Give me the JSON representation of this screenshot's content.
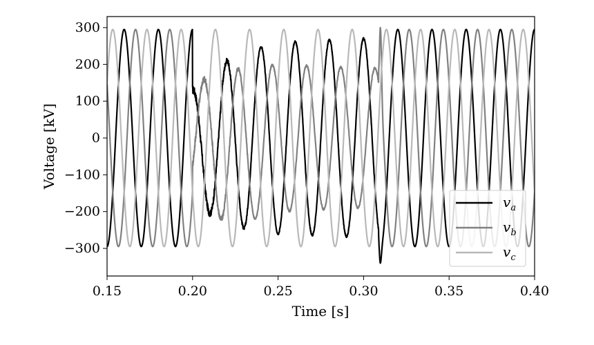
{
  "chart_data": {
    "type": "line",
    "title": "",
    "xlabel": "Time [s]",
    "ylabel": "Voltage [kV]",
    "xlim": [
      0.15,
      0.4
    ],
    "ylim": [
      -375,
      330
    ],
    "xticks": [
      "0.15",
      "0.20",
      "0.25",
      "0.30",
      "0.35",
      "0.40"
    ],
    "yticks": [
      "300",
      "200",
      "100",
      "0",
      "−100",
      "−200",
      "−300"
    ],
    "grid": false,
    "legend_position": "bottom-right",
    "frequency_hz": 50,
    "nominal_amplitude": 295,
    "fault_interval": [
      0.2,
      0.31
    ],
    "series": [
      {
        "name": "v",
        "subscript": "a",
        "color": "#000000",
        "phase_deg": 0,
        "fault_amplitude_envelope": [
          [
            0.2,
            150
          ],
          [
            0.215,
            210
          ],
          [
            0.23,
            240
          ],
          [
            0.25,
            260
          ],
          [
            0.3,
            270
          ],
          [
            0.31,
            270
          ]
        ],
        "fault_offset_envelope": [
          [
            0.2,
            -20
          ],
          [
            0.23,
            -5
          ],
          [
            0.25,
            0
          ],
          [
            0.31,
            0
          ]
        ],
        "transient_extreme": -340
      },
      {
        "name": "v",
        "subscript": "b",
        "color": "#808080",
        "phase_deg": -120,
        "fault_amplitude_envelope": [
          [
            0.2,
            150
          ],
          [
            0.215,
            200
          ],
          [
            0.23,
            210
          ],
          [
            0.25,
            200
          ],
          [
            0.3,
            190
          ],
          [
            0.31,
            190
          ]
        ],
        "fault_offset_envelope": [
          [
            0.2,
            0
          ],
          [
            0.21,
            -20
          ],
          [
            0.23,
            -20
          ],
          [
            0.25,
            0
          ],
          [
            0.31,
            0
          ]
        ],
        "transient_extreme": 300
      },
      {
        "name": "v",
        "subscript": "c",
        "color": "#b8b8b8",
        "phase_deg": 120,
        "fault_amplitude_envelope": [
          [
            0.2,
            295
          ],
          [
            0.31,
            295
          ]
        ],
        "fault_offset_envelope": [
          [
            0.2,
            0
          ],
          [
            0.31,
            0
          ]
        ],
        "transient_extreme": 295
      }
    ]
  }
}
